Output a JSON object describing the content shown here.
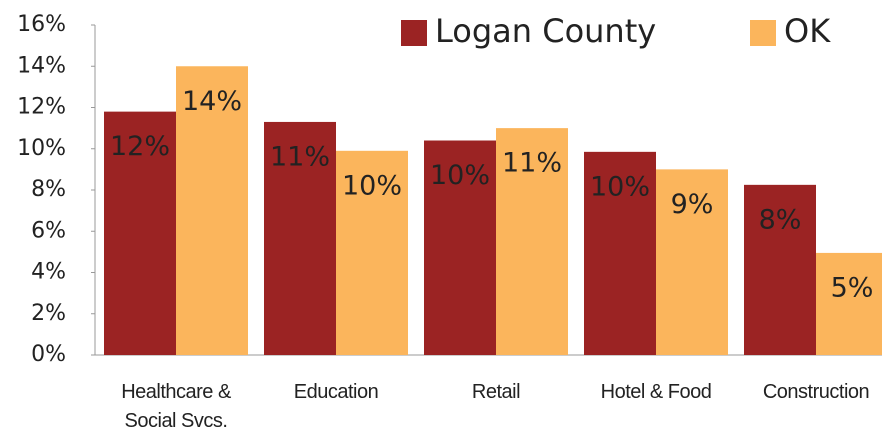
{
  "chart_data": {
    "type": "bar",
    "categories": [
      "Healthcare & Social Svcs.",
      "Education",
      "Retail",
      "Hotel & Food",
      "Construction"
    ],
    "series": [
      {
        "name": "Logan County",
        "color": "#9b2323",
        "values": [
          11.8,
          11.3,
          10.4,
          9.85,
          8.25
        ],
        "value_labels": [
          "12%",
          "11%",
          "10%",
          "10%",
          "8%"
        ]
      },
      {
        "name": "OK",
        "color": "#fbb55c",
        "values": [
          14.0,
          9.9,
          11.0,
          9.0,
          4.95
        ],
        "value_labels": [
          "14%",
          "10%",
          "11%",
          "9%",
          "5%"
        ]
      }
    ],
    "ylim": [
      0,
      16
    ],
    "yticks": [
      {
        "value": 0,
        "label": "0%"
      },
      {
        "value": 2,
        "label": "2%"
      },
      {
        "value": 4,
        "label": "4%"
      },
      {
        "value": 6,
        "label": "6%"
      },
      {
        "value": 8,
        "label": "8%"
      },
      {
        "value": 10,
        "label": "10%"
      },
      {
        "value": 12,
        "label": "12%"
      },
      {
        "value": 14,
        "label": "14%"
      },
      {
        "value": 16,
        "label": "16%"
      }
    ],
    "legend": "top-right",
    "grid": false
  }
}
